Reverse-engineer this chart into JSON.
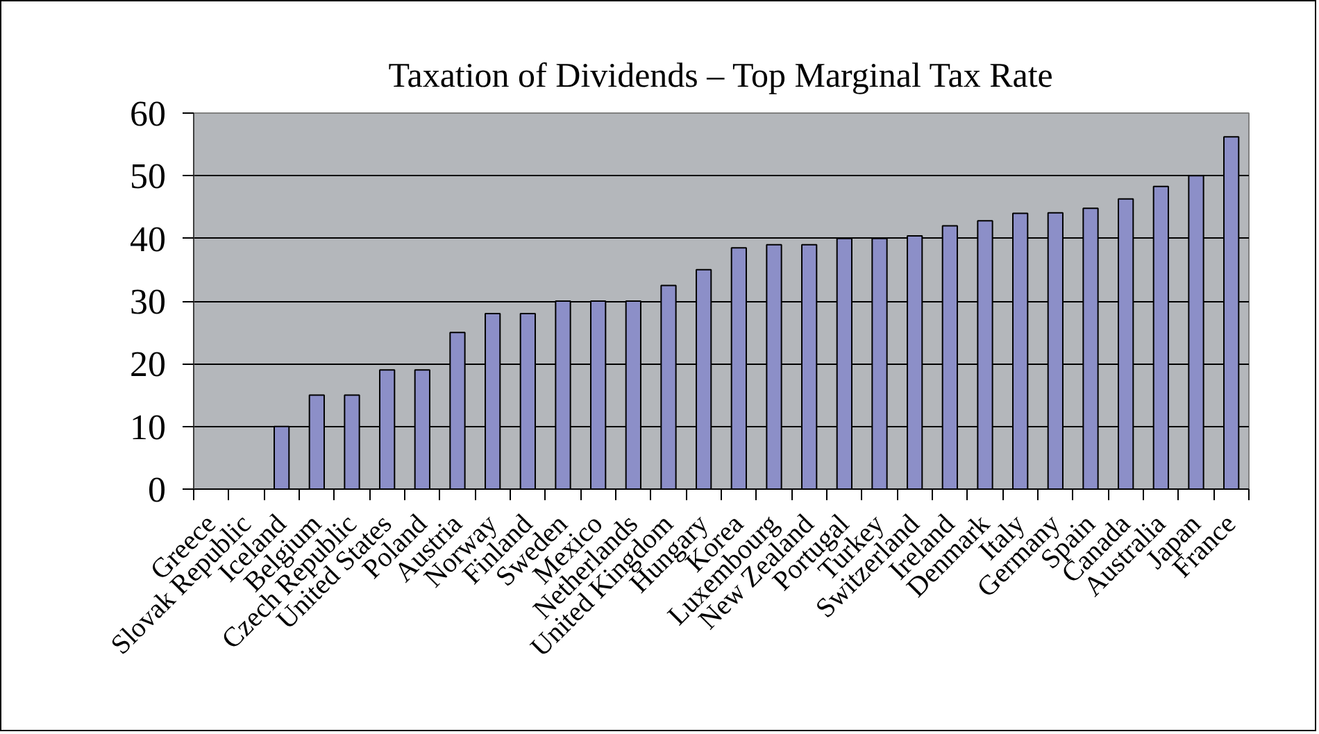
{
  "chart_data": {
    "type": "bar",
    "title": "Taxation of Dividends – Top Marginal Tax Rate",
    "categories": [
      "Greece",
      "Slovak Republic",
      "Iceland",
      "Belgium",
      "Czech Republic",
      "United States",
      "Poland",
      "Austria",
      "Norway",
      "Finland",
      "Sweden",
      "Mexico",
      "Netherlands",
      "United Kingdom",
      "Hungary",
      "Korea",
      "Luxembourg",
      "New Zealand",
      "Portugal",
      "Turkey",
      "Switzerland",
      "Ireland",
      "Denmark",
      "Italy",
      "Germany",
      "Spain",
      "Canada",
      "Australia",
      "Japan",
      "France"
    ],
    "values": [
      0,
      0,
      10,
      15,
      15,
      19,
      19,
      25,
      28,
      28,
      30,
      30,
      30,
      32.5,
      35,
      38.5,
      39,
      39,
      40,
      40,
      40.4,
      42,
      42.8,
      44,
      44.1,
      44.8,
      46.3,
      48.3,
      50,
      56.2
    ],
    "color": "#8c8fc8",
    "ylim": [
      0,
      60
    ],
    "yticks": [
      0,
      10,
      20,
      30,
      40,
      50,
      60
    ],
    "grid": "y"
  }
}
